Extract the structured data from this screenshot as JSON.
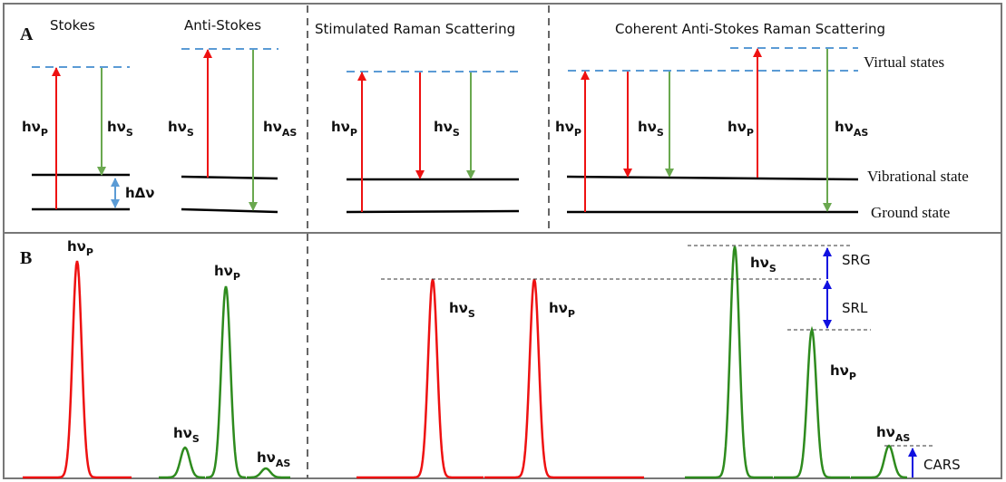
{
  "panel_a": {
    "label": "A",
    "sections": [
      {
        "title": "Stokes",
        "labels": [
          {
            "main": "hν",
            "sub": "P"
          },
          {
            "main": "hν",
            "sub": "S"
          },
          {
            "main": "hΔν"
          }
        ]
      },
      {
        "title": "Anti-Stokes",
        "labels": [
          {
            "main": "hν",
            "sub": "S"
          },
          {
            "main": "hν",
            "sub": "AS"
          }
        ]
      },
      {
        "title": "Stimulated Raman Scattering",
        "labels": [
          {
            "main": "hν",
            "sub": "P"
          },
          {
            "main": "hν",
            "sub": "S"
          }
        ]
      },
      {
        "title": "Coherent Anti-Stokes Raman Scattering",
        "labels": [
          {
            "main": "hν",
            "sub": "P"
          },
          {
            "main": "hν",
            "sub": "S"
          },
          {
            "main": "hν",
            "sub": "P"
          },
          {
            "main": "hν",
            "sub": "AS"
          }
        ]
      }
    ],
    "levels": [
      "Virtual states",
      "Vibrational state",
      "Ground state"
    ]
  },
  "panel_b": {
    "label": "B",
    "labels": [
      {
        "main": "hν",
        "sub": "P"
      },
      {
        "main": "hν",
        "sub": "P"
      },
      {
        "main": "hν",
        "sub": "S"
      },
      {
        "main": "hν",
        "sub": "AS"
      },
      {
        "main": "hν",
        "sub": "S"
      },
      {
        "main": "hν",
        "sub": "P"
      },
      {
        "main": "hν",
        "sub": "S"
      },
      {
        "main": "hν",
        "sub": "P"
      },
      {
        "main": "hν",
        "sub": "AS"
      }
    ],
    "annotations": [
      "SRG",
      "SRL",
      "CARS"
    ]
  }
}
